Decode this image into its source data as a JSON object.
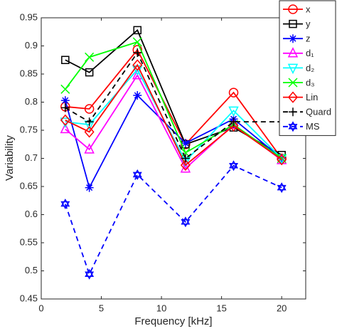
{
  "chart_data": {
    "type": "line",
    "x_label": "Frequency [kHz]",
    "y_label": "Variability",
    "x": [
      2,
      4,
      8,
      12,
      16,
      20
    ],
    "xlim": [
      0,
      22
    ],
    "xticks": [
      0,
      5,
      10,
      15,
      20
    ],
    "ylim": [
      0.45,
      0.95
    ],
    "yticks": [
      0.45,
      0.5,
      0.55,
      0.6,
      0.65,
      0.7,
      0.75,
      0.8,
      0.85,
      0.9,
      0.95
    ],
    "legend": "top-right",
    "series": [
      {
        "name": "x",
        "color": "#ff0000",
        "marker": "circle",
        "dashed": false,
        "values": [
          0.792,
          0.788,
          0.893,
          0.725,
          0.817,
          0.7
        ]
      },
      {
        "name": "y",
        "color": "#000000",
        "marker": "square",
        "dashed": false,
        "values": [
          0.875,
          0.853,
          0.928,
          0.725,
          0.755,
          0.706
        ]
      },
      {
        "name": "z",
        "color": "#0000ff",
        "marker": "asterisk",
        "dashed": false,
        "values": [
          0.803,
          0.648,
          0.812,
          0.727,
          0.77,
          0.7
        ]
      },
      {
        "name": "d₁",
        "color": "#ff00ff",
        "marker": "triangle-up",
        "dashed": false,
        "values": [
          0.752,
          0.716,
          0.848,
          0.682,
          0.76,
          0.697
        ]
      },
      {
        "name": "d₂",
        "color": "#00ffff",
        "marker": "triangle-down",
        "dashed": false,
        "values": [
          0.765,
          0.76,
          0.858,
          0.695,
          0.785,
          0.7
        ]
      },
      {
        "name": "d₃",
        "color": "#00ff00",
        "marker": "x",
        "dashed": false,
        "values": [
          0.823,
          0.88,
          0.907,
          0.71,
          0.76,
          0.7
        ]
      },
      {
        "name": "Lin",
        "color": "#ff0000",
        "marker": "diamond",
        "dashed": false,
        "values": [
          0.768,
          0.747,
          0.866,
          0.688,
          0.758,
          0.698
        ]
      },
      {
        "name": "Quard",
        "color": "#000000",
        "marker": "plus",
        "dashed": true,
        "values": [
          0.79,
          0.765,
          0.888,
          0.7,
          0.765,
          0.765
        ]
      },
      {
        "name": "MS",
        "color": "#0000ff",
        "marker": "hexagram",
        "dashed": true,
        "values": [
          0.619,
          0.494,
          0.671,
          0.587,
          0.687,
          0.648
        ]
      }
    ]
  }
}
